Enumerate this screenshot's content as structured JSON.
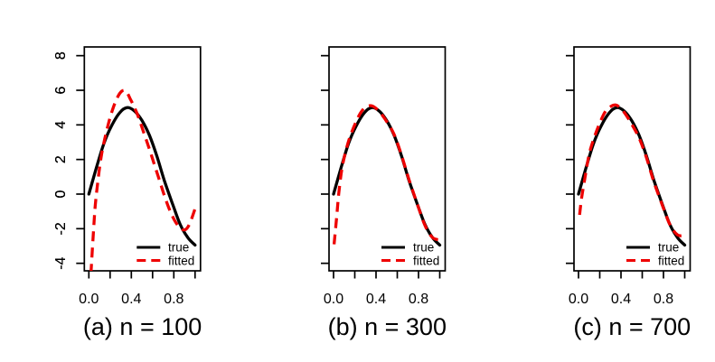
{
  "figure": {
    "background": "#ffffff",
    "axis_color": "#000000",
    "panel_count": 3
  },
  "axes": {
    "y_ticks": [
      {
        "value": 8,
        "label": "8"
      },
      {
        "value": 6,
        "label": "6"
      },
      {
        "value": 4,
        "label": "4"
      },
      {
        "value": 2,
        "label": "2"
      },
      {
        "value": 0,
        "label": "0"
      },
      {
        "value": -2,
        "label": "-2"
      },
      {
        "value": -4,
        "label": "-4"
      }
    ],
    "x_ticks": [
      0,
      0.2,
      0.4,
      0.6,
      0.8,
      1.0
    ],
    "x_tick_labels": [
      {
        "value": 0.0,
        "label": "0.0"
      },
      {
        "value": 0.4,
        "label": "0.4"
      },
      {
        "value": 0.8,
        "label": "0.8"
      }
    ]
  },
  "legend": {
    "position": "bottom-right",
    "items": [
      {
        "label": "true",
        "color": "#000000",
        "style": "solid"
      },
      {
        "label": "fitted",
        "color": "#ee0000",
        "style": "dashed"
      }
    ]
  },
  "chart_data": [
    {
      "type": "line",
      "caption": "(a) n = 100",
      "xlim": [
        0,
        1
      ],
      "ylim": [
        -4,
        8
      ],
      "grid": false,
      "series": [
        {
          "name": "true",
          "color": "#000000",
          "style": "solid",
          "points": [
            [
              0,
              0
            ],
            [
              0.07,
              1.5
            ],
            [
              0.14,
              2.9
            ],
            [
              0.21,
              3.9
            ],
            [
              0.29,
              4.7
            ],
            [
              0.36,
              5.0
            ],
            [
              0.43,
              4.8
            ],
            [
              0.5,
              4.25
            ],
            [
              0.57,
              3.4
            ],
            [
              0.64,
              2.2
            ],
            [
              0.71,
              0.8
            ],
            [
              0.79,
              -0.6
            ],
            [
              0.86,
              -1.75
            ],
            [
              0.93,
              -2.5
            ],
            [
              1.0,
              -2.95
            ]
          ]
        },
        {
          "name": "fitted",
          "color": "#ee0000",
          "style": "dashed",
          "points": [
            [
              0.02,
              -4.6
            ],
            [
              0.04,
              -2.5
            ],
            [
              0.06,
              -0.7
            ],
            [
              0.09,
              1.0
            ],
            [
              0.12,
              2.3
            ],
            [
              0.15,
              3.2
            ],
            [
              0.19,
              4.2
            ],
            [
              0.23,
              5.0
            ],
            [
              0.27,
              5.6
            ],
            [
              0.31,
              5.95
            ],
            [
              0.35,
              5.95
            ],
            [
              0.39,
              5.5
            ],
            [
              0.43,
              5.0
            ],
            [
              0.47,
              4.4
            ],
            [
              0.52,
              3.5
            ],
            [
              0.57,
              2.6
            ],
            [
              0.62,
              1.65
            ],
            [
              0.67,
              0.7
            ],
            [
              0.72,
              -0.25
            ],
            [
              0.77,
              -1.05
            ],
            [
              0.82,
              -1.65
            ],
            [
              0.87,
              -2.0
            ],
            [
              0.91,
              -2.05
            ],
            [
              0.95,
              -1.7
            ],
            [
              1.0,
              -0.85
            ]
          ]
        }
      ]
    },
    {
      "type": "line",
      "caption": "(b) n = 300",
      "xlim": [
        0,
        1
      ],
      "ylim": [
        -4,
        8
      ],
      "grid": false,
      "series": [
        {
          "name": "true",
          "color": "#000000",
          "style": "solid",
          "points": [
            [
              0,
              0
            ],
            [
              0.07,
              1.5
            ],
            [
              0.14,
              2.9
            ],
            [
              0.21,
              3.9
            ],
            [
              0.29,
              4.7
            ],
            [
              0.36,
              5.0
            ],
            [
              0.43,
              4.8
            ],
            [
              0.5,
              4.25
            ],
            [
              0.57,
              3.4
            ],
            [
              0.64,
              2.2
            ],
            [
              0.71,
              0.8
            ],
            [
              0.79,
              -0.6
            ],
            [
              0.86,
              -1.75
            ],
            [
              0.93,
              -2.5
            ],
            [
              1.0,
              -2.95
            ]
          ]
        },
        {
          "name": "fitted",
          "color": "#ee0000",
          "style": "dashed",
          "points": [
            [
              0.005,
              -2.9
            ],
            [
              0.03,
              -1.3
            ],
            [
              0.05,
              0.1
            ],
            [
              0.08,
              1.5
            ],
            [
              0.12,
              2.6
            ],
            [
              0.16,
              3.4
            ],
            [
              0.21,
              4.15
            ],
            [
              0.26,
              4.75
            ],
            [
              0.31,
              5.05
            ],
            [
              0.36,
              5.1
            ],
            [
              0.41,
              4.9
            ],
            [
              0.46,
              4.55
            ],
            [
              0.51,
              4.1
            ],
            [
              0.57,
              3.45
            ],
            [
              0.64,
              2.25
            ],
            [
              0.71,
              0.85
            ],
            [
              0.79,
              -0.6
            ],
            [
              0.86,
              -1.8
            ],
            [
              0.93,
              -2.5
            ],
            [
              1.0,
              -2.65
            ]
          ]
        }
      ]
    },
    {
      "type": "line",
      "caption": "(c) n = 700",
      "xlim": [
        0,
        1
      ],
      "ylim": [
        -4,
        8
      ],
      "grid": false,
      "series": [
        {
          "name": "true",
          "color": "#000000",
          "style": "solid",
          "points": [
            [
              0,
              0
            ],
            [
              0.07,
              1.5
            ],
            [
              0.14,
              2.9
            ],
            [
              0.21,
              3.9
            ],
            [
              0.29,
              4.7
            ],
            [
              0.36,
              5.0
            ],
            [
              0.43,
              4.8
            ],
            [
              0.5,
              4.25
            ],
            [
              0.57,
              3.4
            ],
            [
              0.64,
              2.2
            ],
            [
              0.71,
              0.8
            ],
            [
              0.79,
              -0.6
            ],
            [
              0.86,
              -1.75
            ],
            [
              0.93,
              -2.5
            ],
            [
              1.0,
              -2.95
            ]
          ]
        },
        {
          "name": "fitted",
          "color": "#ee0000",
          "style": "dashed",
          "points": [
            [
              0.01,
              -1.2
            ],
            [
              0.03,
              -0.2
            ],
            [
              0.06,
              0.9
            ],
            [
              0.1,
              2.3
            ],
            [
              0.15,
              3.3
            ],
            [
              0.2,
              4.1
            ],
            [
              0.25,
              4.75
            ],
            [
              0.3,
              5.05
            ],
            [
              0.35,
              5.15
            ],
            [
              0.4,
              4.95
            ],
            [
              0.45,
              4.55
            ],
            [
              0.5,
              4.05
            ],
            [
              0.57,
              3.25
            ],
            [
              0.64,
              2.1
            ],
            [
              0.71,
              0.7
            ],
            [
              0.79,
              -0.65
            ],
            [
              0.86,
              -1.75
            ],
            [
              0.93,
              -2.35
            ],
            [
              1.0,
              -2.4
            ]
          ]
        }
      ]
    }
  ]
}
